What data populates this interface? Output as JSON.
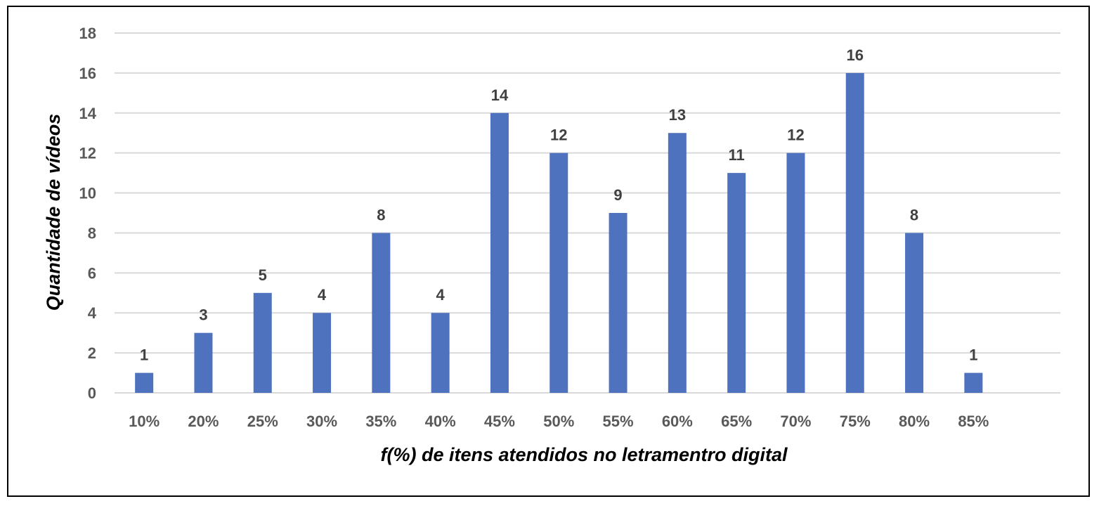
{
  "chart_data": {
    "type": "bar",
    "title": "",
    "xlabel": "f(%) de itens atendidos no letramentro digital",
    "ylabel": "Quantidade de vídeos",
    "categories": [
      "10%",
      "20%",
      "25%",
      "30%",
      "35%",
      "40%",
      "45%",
      "50%",
      "55%",
      "60%",
      "65%",
      "70%",
      "75%",
      "80%",
      "85%"
    ],
    "values": [
      1,
      3,
      5,
      4,
      8,
      4,
      14,
      12,
      9,
      13,
      11,
      12,
      16,
      8,
      1
    ],
    "ylim": [
      0,
      18
    ],
    "yticks": [
      0,
      2,
      4,
      6,
      8,
      10,
      12,
      14,
      16,
      18
    ],
    "grid": true,
    "legend": "none",
    "data_labels": true,
    "bar_color": "#4f72be"
  }
}
